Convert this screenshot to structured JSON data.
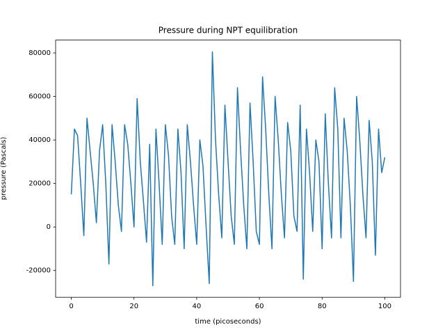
{
  "chart_data": {
    "type": "line",
    "title": "Pressure during NPT equilibration",
    "x_label": "time (picoseconds)",
    "y_label": "pressure (Pascals)",
    "color": "#1f77b4",
    "x": [
      0,
      1,
      2,
      3,
      4,
      5,
      6,
      7,
      8,
      9,
      10,
      11,
      12,
      13,
      14,
      15,
      16,
      17,
      18,
      19,
      20,
      21,
      22,
      23,
      24,
      25,
      26,
      27,
      28,
      29,
      30,
      31,
      32,
      33,
      34,
      35,
      36,
      37,
      38,
      39,
      40,
      41,
      42,
      43,
      44,
      45,
      46,
      47,
      48,
      49,
      50,
      51,
      52,
      53,
      54,
      55,
      56,
      57,
      58,
      59,
      60,
      61,
      62,
      63,
      64,
      65,
      66,
      67,
      68,
      69,
      70,
      71,
      72,
      73,
      74,
      75,
      76,
      77,
      78,
      79,
      80,
      81,
      82,
      83,
      84,
      85,
      86,
      87,
      88,
      89,
      90,
      91,
      92,
      93,
      94,
      95,
      96,
      97,
      98,
      99,
      100
    ],
    "values": [
      15000,
      45000,
      42000,
      20000,
      -4000,
      50000,
      35000,
      20000,
      2000,
      35000,
      47000,
      20000,
      -17000,
      47000,
      30000,
      10000,
      -2000,
      47000,
      38000,
      20000,
      0,
      59000,
      30000,
      12000,
      -7000,
      38000,
      -27000,
      45000,
      20000,
      -8000,
      47000,
      33000,
      5000,
      -8000,
      45000,
      25000,
      -10000,
      47000,
      30000,
      10000,
      -8000,
      40000,
      28000,
      0,
      -26000,
      80500,
      40000,
      15000,
      -5000,
      56000,
      30000,
      5000,
      -8000,
      64000,
      35000,
      10000,
      -10000,
      57000,
      30000,
      -2000,
      -8000,
      69000,
      45000,
      15000,
      -10000,
      60000,
      40000,
      15000,
      -5000,
      48000,
      35000,
      5000,
      -2000,
      56000,
      -24000,
      45000,
      25000,
      -2000,
      40000,
      30000,
      -10000,
      52000,
      20000,
      -5000,
      64000,
      45000,
      -5000,
      50000,
      35000,
      10000,
      -25000,
      60000,
      40000,
      15000,
      -5000,
      49000,
      30000,
      -13000,
      45000,
      25000,
      32000
    ],
    "xlim": [
      -5,
      105
    ],
    "ylim": [
      -32300,
      85900
    ],
    "xticks": [
      0,
      20,
      40,
      60,
      80,
      100
    ],
    "yticks": [
      -20000,
      0,
      20000,
      40000,
      60000,
      80000
    ]
  }
}
